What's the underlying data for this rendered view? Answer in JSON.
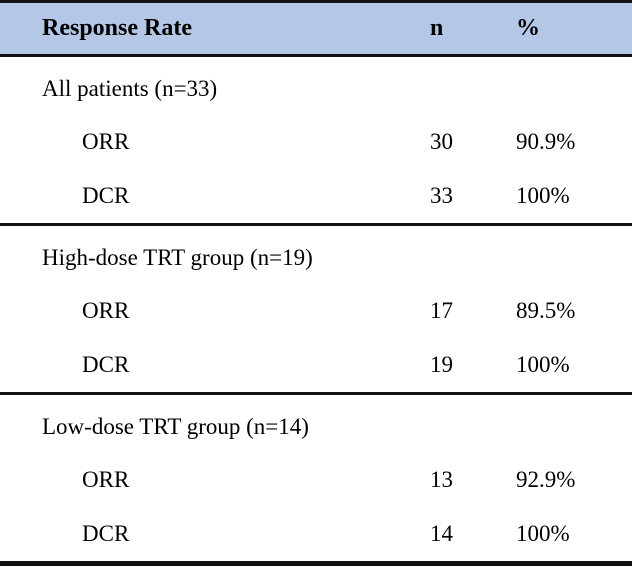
{
  "table": {
    "header": {
      "col1": "Response Rate",
      "col2": "n",
      "col3": "%"
    },
    "sections": [
      {
        "label": "All patients (n=33)",
        "rows": [
          {
            "name": "ORR",
            "n": "30",
            "pct": "90.9%"
          },
          {
            "name": "DCR",
            "n": "33",
            "pct": "100%"
          }
        ]
      },
      {
        "label": "High-dose TRT group (n=19)",
        "rows": [
          {
            "name": "ORR",
            "n": "17",
            "pct": "89.5%"
          },
          {
            "name": "DCR",
            "n": "19",
            "pct": "100%"
          }
        ]
      },
      {
        "label": "Low-dose TRT group (n=14)",
        "rows": [
          {
            "name": "ORR",
            "n": "13",
            "pct": "92.9%"
          },
          {
            "name": "DCR",
            "n": "14",
            "pct": "100%"
          }
        ]
      }
    ],
    "colors": {
      "header_bg": "#b4c7e7",
      "rule": "#121212",
      "text": "#000000"
    }
  },
  "chart_data": {
    "type": "table",
    "title": "Response Rate",
    "columns": [
      "Response Rate",
      "n",
      "%"
    ],
    "rows": [
      [
        "All patients (n=33)",
        "",
        ""
      ],
      [
        "ORR",
        30,
        "90.9%"
      ],
      [
        "DCR",
        33,
        "100%"
      ],
      [
        "High-dose TRT group (n=19)",
        "",
        ""
      ],
      [
        "ORR",
        17,
        "89.5%"
      ],
      [
        "DCR",
        19,
        "100%"
      ],
      [
        "Low-dose TRT group (n=14)",
        "",
        ""
      ],
      [
        "ORR",
        13,
        "92.9%"
      ],
      [
        "DCR",
        14,
        "100%"
      ]
    ]
  }
}
